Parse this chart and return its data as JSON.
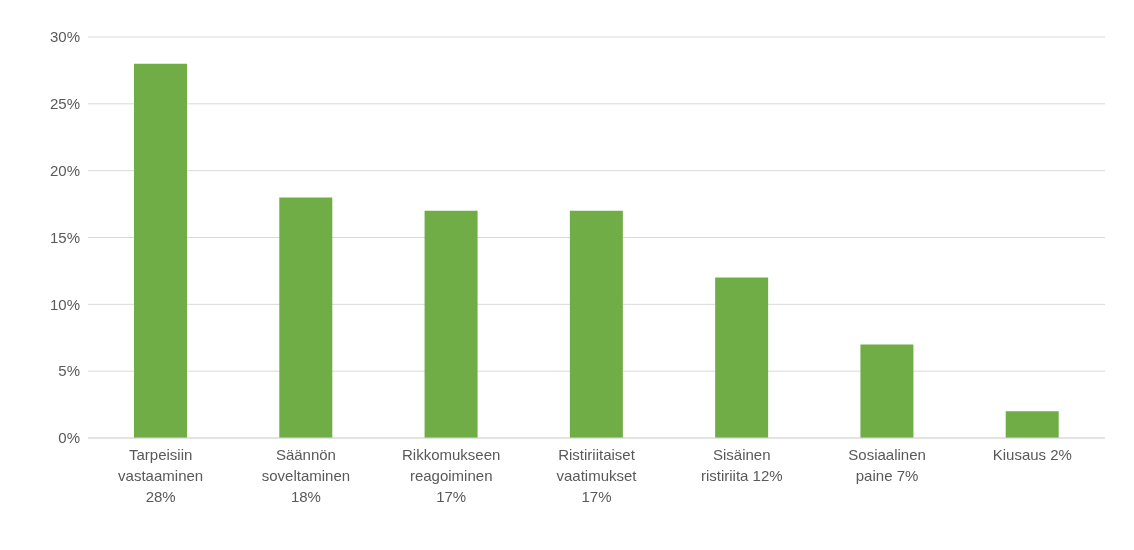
{
  "chart_data": {
    "type": "bar",
    "categories": [
      "Tarpeisiin vastaaminen 28%",
      "Säännön soveltaminen 18%",
      "Rikkomukseen reagoiminen 17%",
      "Ristiriitaiset vaatimukset 17%",
      "Sisäinen ristiriita 12%",
      "Sosiaalinen paine 7%",
      "Kiusaus 2%"
    ],
    "values": [
      28,
      18,
      17,
      17,
      12,
      7,
      2
    ],
    "color": "#70ad47",
    "ylim": [
      0,
      30
    ],
    "yticks": [
      {
        "value": 0,
        "label": "0%"
      },
      {
        "value": 5,
        "label": "5%"
      },
      {
        "value": 10,
        "label": "10%"
      },
      {
        "value": 15,
        "label": "15%"
      },
      {
        "value": 20,
        "label": "20%"
      },
      {
        "value": 25,
        "label": "25%"
      },
      {
        "value": 30,
        "label": "30%"
      }
    ],
    "grid": "y"
  }
}
